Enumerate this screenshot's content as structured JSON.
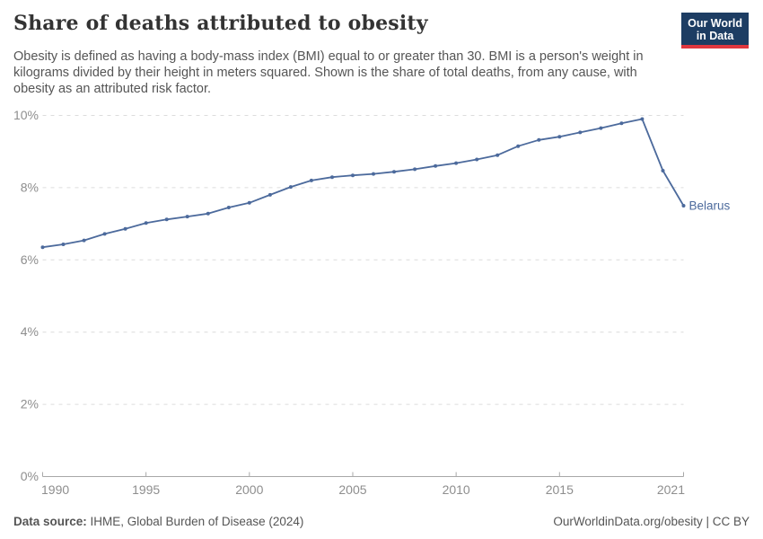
{
  "header": {
    "title": "Share of deaths attributed to obesity",
    "subtitle": "Obesity is defined as having a body-mass index (BMI) equal to or greater than 30. BMI is a person's weight in kilograms divided by their height in meters squared. Shown is the share of total deaths, from any cause, with obesity as an attributed risk factor.",
    "logo": {
      "line1": "Our World",
      "line2": "in Data",
      "bg_color": "#1d3d63",
      "accent_color": "#e0373f"
    }
  },
  "chart_data": {
    "type": "line",
    "title": "Share of deaths attributed to obesity",
    "xlabel": "",
    "ylabel": "",
    "xlim": [
      1990,
      2021
    ],
    "ylim": [
      0,
      10
    ],
    "grid": "horizontal dashed",
    "legend_position": "end-of-line label",
    "x_ticks": [
      1990,
      1995,
      2000,
      2005,
      2010,
      2015,
      2021
    ],
    "y_ticks": [
      0,
      2,
      4,
      6,
      8,
      10
    ],
    "y_tick_suffix": "%",
    "series": [
      {
        "name": "Belarus",
        "color": "#4C6A9C",
        "x": [
          1990,
          1991,
          1992,
          1993,
          1994,
          1995,
          1996,
          1997,
          1998,
          1999,
          2000,
          2001,
          2002,
          2003,
          2004,
          2005,
          2006,
          2007,
          2008,
          2009,
          2010,
          2011,
          2012,
          2013,
          2014,
          2015,
          2016,
          2017,
          2018,
          2019,
          2020,
          2021
        ],
        "values": [
          6.35,
          6.43,
          6.54,
          6.72,
          6.86,
          7.02,
          7.12,
          7.2,
          7.28,
          7.45,
          7.58,
          7.8,
          8.02,
          8.2,
          8.29,
          8.34,
          8.38,
          8.44,
          8.51,
          8.6,
          8.68,
          8.78,
          8.9,
          9.15,
          9.32,
          9.41,
          9.53,
          9.65,
          9.78,
          9.9,
          8.47,
          7.5
        ]
      }
    ],
    "end_label": "Belarus"
  },
  "footer": {
    "source_label": "Data source:",
    "source_text": " IHME, Global Burden of Disease (2024)",
    "url_text": "OurWorldinData.org/obesity",
    "divider": " | ",
    "license_text": "CC BY"
  },
  "colors": {
    "line": "#4C6A9C",
    "grid": "#dcdcdc",
    "axis": "#a8a8a8",
    "tick_label": "#8e8e8e",
    "title": "#333333",
    "subtitle": "#555555"
  }
}
